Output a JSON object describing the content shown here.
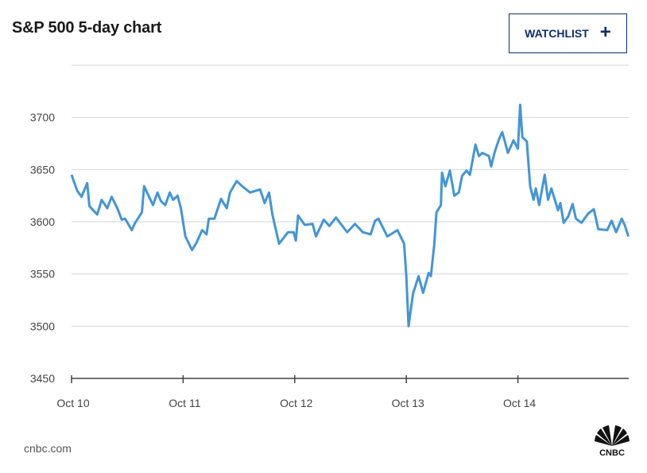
{
  "header": {
    "title": "S&P 500 5-day chart",
    "watchlist_label": "WATCHLIST",
    "watchlist_icon": "plus-icon"
  },
  "footer": {
    "source": "cnbc.com",
    "logo_text": "CNBC"
  },
  "colors": {
    "line": "#4295d6",
    "grid": "#d6d6d6",
    "button": "#0a2f6b"
  },
  "chart_data": {
    "type": "line",
    "title": "S&P 500 5-day chart",
    "xlabel": "",
    "ylabel": "",
    "x_unit": "trading days since Oct 10 open",
    "xlim": [
      0,
      4.99
    ],
    "ylim": [
      3450,
      3750
    ],
    "grid": true,
    "y_ticks": [
      3450,
      3500,
      3550,
      3600,
      3650,
      3700
    ],
    "x_ticks": [
      {
        "x": 0,
        "label": "Oct 10"
      },
      {
        "x": 1,
        "label": "Oct 11"
      },
      {
        "x": 2,
        "label": "Oct 12"
      },
      {
        "x": 3,
        "label": "Oct 13"
      },
      {
        "x": 4,
        "label": "Oct 14"
      }
    ],
    "series": [
      {
        "name": "S&P 500",
        "x": [
          0,
          0.05,
          0.09,
          0.14,
          0.16,
          0.23,
          0.27,
          0.32,
          0.36,
          0.41,
          0.45,
          0.48,
          0.54,
          0.57,
          0.63,
          0.65,
          0.73,
          0.77,
          0.8,
          0.84,
          0.88,
          0.91,
          0.95,
          0.98,
          1.02,
          1.08,
          1.12,
          1.17,
          1.21,
          1.23,
          1.28,
          1.34,
          1.39,
          1.42,
          1.48,
          1.53,
          1.6,
          1.69,
          1.73,
          1.77,
          1.8,
          1.86,
          1.94,
          1.99,
          2.01,
          2.03,
          2.09,
          2.16,
          2.19,
          2.26,
          2.31,
          2.37,
          2.47,
          2.54,
          2.61,
          2.68,
          2.72,
          2.75,
          2.83,
          2.92,
          2.98,
          3.0,
          3.02,
          3.06,
          3.11,
          3.15,
          3.2,
          3.22,
          3.25,
          3.27,
          3.31,
          3.32,
          3.35,
          3.39,
          3.43,
          3.47,
          3.5,
          3.54,
          3.57,
          3.62,
          3.65,
          3.68,
          3.74,
          3.76,
          3.79,
          3.83,
          3.86,
          3.91,
          3.96,
          4.0,
          4.02,
          4.04,
          4.08,
          4.11,
          4.14,
          4.16,
          4.19,
          4.24,
          4.27,
          4.3,
          4.36,
          4.38,
          4.41,
          4.45,
          4.49,
          4.52,
          4.57,
          4.63,
          4.68,
          4.72,
          4.8,
          4.84,
          4.88,
          4.93,
          4.96,
          4.99
        ],
        "values": [
          3645,
          3630,
          3624,
          3637,
          3615,
          3607,
          3621,
          3613,
          3624,
          3613,
          3602,
          3603,
          3592,
          3599,
          3609,
          3634,
          3616,
          3628,
          3620,
          3616,
          3628,
          3621,
          3625,
          3613,
          3586,
          3573,
          3580,
          3592,
          3588,
          3603,
          3603,
          3622,
          3613,
          3628,
          3639,
          3634,
          3628,
          3631,
          3618,
          3628,
          3607,
          3579,
          3590,
          3590,
          3582,
          3606,
          3597,
          3598,
          3586,
          3602,
          3596,
          3604,
          3590,
          3598,
          3590,
          3588,
          3601,
          3603,
          3586,
          3592,
          3579,
          3548,
          3500,
          3531,
          3548,
          3532,
          3551,
          3548,
          3578,
          3609,
          3616,
          3647,
          3634,
          3649,
          3625,
          3628,
          3644,
          3649,
          3645,
          3674,
          3663,
          3666,
          3663,
          3653,
          3666,
          3679,
          3686,
          3666,
          3678,
          3670,
          3712,
          3681,
          3677,
          3634,
          3621,
          3632,
          3616,
          3645,
          3621,
          3632,
          3611,
          3618,
          3599,
          3605,
          3617,
          3603,
          3599,
          3608,
          3612,
          3593,
          3592,
          3601,
          3590,
          3603,
          3596,
          3586
        ]
      }
    ]
  }
}
